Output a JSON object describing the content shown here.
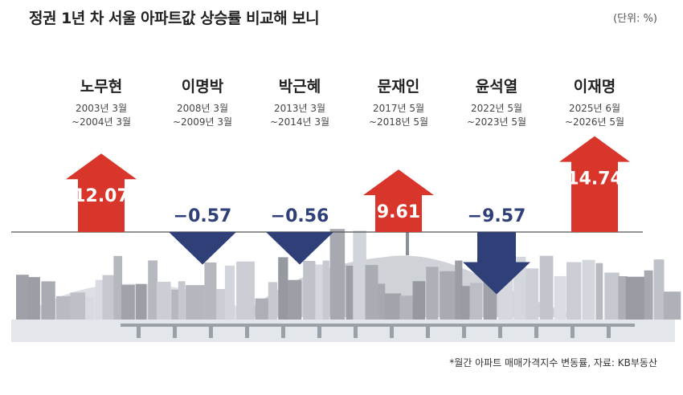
{
  "title": "정권 1년 차 서울 아파트값 상승률 비교해 보니",
  "unit": "(단위: %)",
  "footnote": "*월간 아파트 매매가격지수 변동률, 자료: KB부동산",
  "colors": {
    "up": "#d9362b",
    "down": "#2f3f78",
    "baseline": "#555555"
  },
  "chart_data": {
    "type": "bar",
    "categories": [
      "노무현",
      "이명박",
      "박근혜",
      "문재인",
      "윤석열",
      "이재명"
    ],
    "periods": [
      [
        "2003년 3월",
        "~2004년 3월"
      ],
      [
        "2008년 3월",
        "~2009년 3월"
      ],
      [
        "2013년 3월",
        "~2014년 3월"
      ],
      [
        "2017년 5월",
        "~2018년 5월"
      ],
      [
        "2022년 5월",
        "~2023년 5월"
      ],
      [
        "2025년 6월",
        "~2026년 5월"
      ]
    ],
    "values": [
      12.07,
      -0.57,
      -0.56,
      9.61,
      -9.57,
      14.74
    ],
    "value_labels": [
      "12.07",
      "−0.57",
      "−0.56",
      "9.61",
      "−9.57",
      "14.74"
    ],
    "title": "정권 1년 차 서울 아파트값 상승률 비교해 보니",
    "unit": "%"
  }
}
